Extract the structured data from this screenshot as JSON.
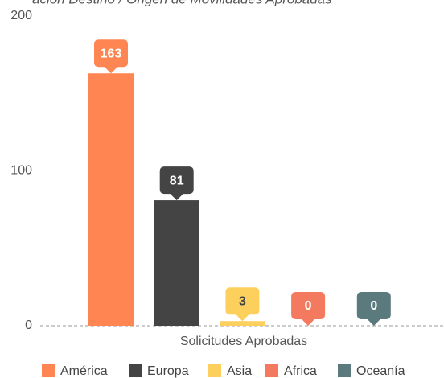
{
  "chart_data": {
    "type": "bar",
    "title": "ación Destino / Origen de Movilidades Aprobadas",
    "categories": [
      "Solicitudes Aprobadas"
    ],
    "series": [
      {
        "name": "América",
        "color": "#ff8552",
        "values": [
          163
        ]
      },
      {
        "name": "Europa",
        "color": "#444444",
        "values": [
          81
        ]
      },
      {
        "name": "Asia",
        "color": "#fdcf5c",
        "values": [
          3
        ]
      },
      {
        "name": "Africa",
        "color": "#f47a5f",
        "values": [
          0
        ]
      },
      {
        "name": "Oceanía",
        "color": "#5b7a7e",
        "values": [
          0
        ]
      }
    ],
    "ylim": [
      0,
      200
    ],
    "yticks": [
      0,
      100,
      200
    ],
    "legend": "bottom"
  }
}
